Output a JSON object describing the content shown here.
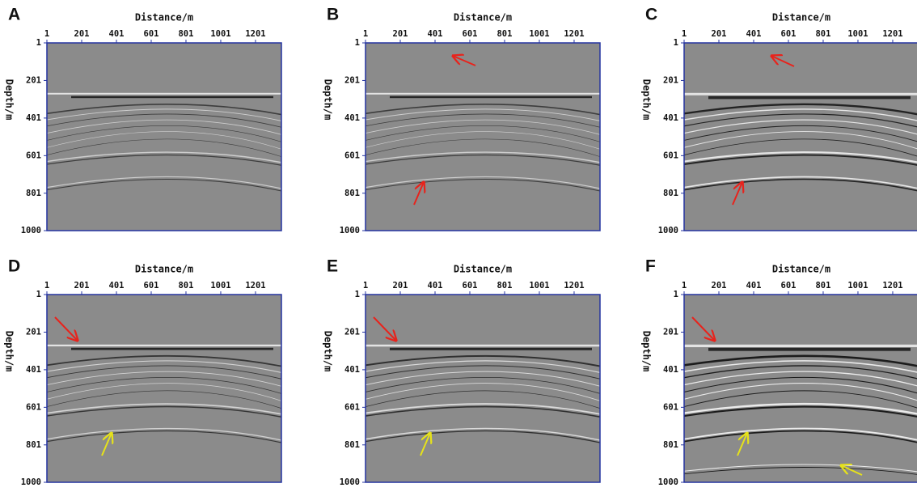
{
  "panels": [
    {
      "label": "A",
      "x_label": "Distance/m",
      "y_label": "Depth/m",
      "xlim": [
        1,
        1350
      ],
      "ylim": [
        1,
        1000
      ],
      "xticks": [
        1,
        201,
        401,
        601,
        801,
        1001,
        1201
      ],
      "yticks": [
        1,
        201,
        401,
        601,
        801,
        1000
      ]
    },
    {
      "label": "B",
      "x_label": "Distance/m",
      "y_label": "Depth/m",
      "xlim": [
        1,
        1350
      ],
      "ylim": [
        1,
        1000
      ],
      "xticks": [
        1,
        201,
        401,
        601,
        801,
        1001,
        1201
      ],
      "yticks": [
        1,
        201,
        401,
        601,
        801,
        1000
      ]
    },
    {
      "label": "C",
      "x_label": "Distance/m",
      "y_label": "Depth/m",
      "xlim": [
        1,
        1350
      ],
      "ylim": [
        1,
        1000
      ],
      "xticks": [
        1,
        201,
        401,
        601,
        801,
        1001,
        1201
      ],
      "yticks": [
        1,
        201,
        401,
        601,
        801,
        1000
      ]
    },
    {
      "label": "D",
      "x_label": "Distance/m",
      "y_label": "Depth/m",
      "xlim": [
        1,
        1350
      ],
      "ylim": [
        1,
        1000
      ],
      "xticks": [
        1,
        201,
        401,
        601,
        801,
        1001,
        1201
      ],
      "yticks": [
        1,
        201,
        401,
        601,
        801,
        1000
      ]
    },
    {
      "label": "E",
      "x_label": "Distance/m",
      "y_label": "Depth/m",
      "xlim": [
        1,
        1350
      ],
      "ylim": [
        1,
        1000
      ],
      "xticks": [
        1,
        201,
        401,
        601,
        801,
        1001,
        1201
      ],
      "yticks": [
        1,
        201,
        401,
        601,
        801,
        1000
      ]
    },
    {
      "label": "F",
      "x_label": "Distance/m",
      "y_label": "Depth/m",
      "xlim": [
        1,
        1350
      ],
      "ylim": [
        1,
        1000
      ],
      "xticks": [
        1,
        201,
        401,
        601,
        801,
        1001,
        1201
      ],
      "yticks": [
        1,
        201,
        401,
        601,
        801,
        1000
      ]
    }
  ]
}
